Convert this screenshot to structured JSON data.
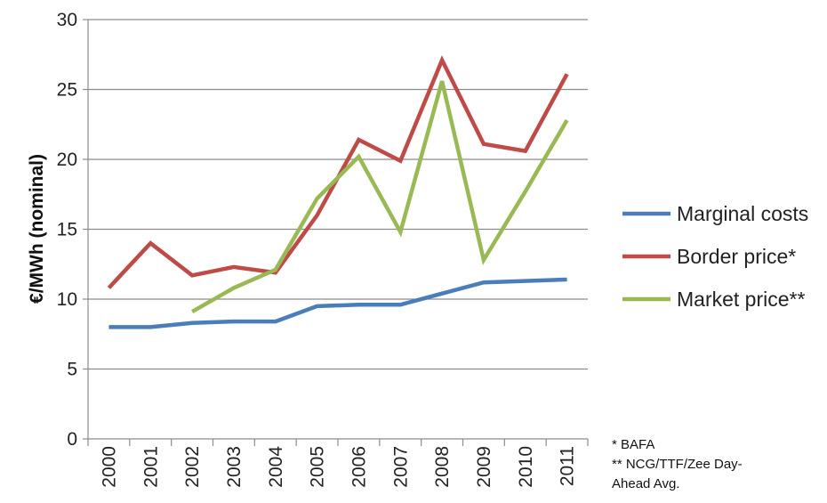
{
  "chart_data": {
    "type": "line",
    "title": "",
    "xlabel": "",
    "ylabel": "€/MWh (nominal)",
    "categories": [
      "2000",
      "2001",
      "2002",
      "2003",
      "2004",
      "2005",
      "2006",
      "2007",
      "2008",
      "2009",
      "2010",
      "2011"
    ],
    "ylim": [
      0,
      30
    ],
    "yticks": [
      0,
      5,
      10,
      15,
      20,
      25,
      30
    ],
    "grid": true,
    "legend_position": "right",
    "series": [
      {
        "name": "Marginal costs",
        "color": "#4a7ebb",
        "values": [
          8.0,
          8.0,
          8.3,
          8.4,
          8.4,
          9.5,
          9.6,
          9.6,
          10.4,
          11.2,
          11.3,
          11.4
        ]
      },
      {
        "name": "Border price*",
        "color": "#be4b48",
        "values": [
          10.8,
          14.0,
          11.7,
          12.3,
          11.9,
          16.0,
          21.4,
          19.9,
          27.1,
          21.1,
          20.6,
          26.1
        ]
      },
      {
        "name": "Market price**",
        "color": "#98b954",
        "values": [
          null,
          null,
          9.1,
          10.8,
          12.1,
          17.2,
          20.2,
          14.8,
          25.6,
          12.8,
          17.7,
          22.8
        ]
      }
    ]
  },
  "footnotes": {
    "line1": "* BAFA",
    "line2": "** NCG/TTF/Zee Day-",
    "line3": "Ahead Avg."
  }
}
